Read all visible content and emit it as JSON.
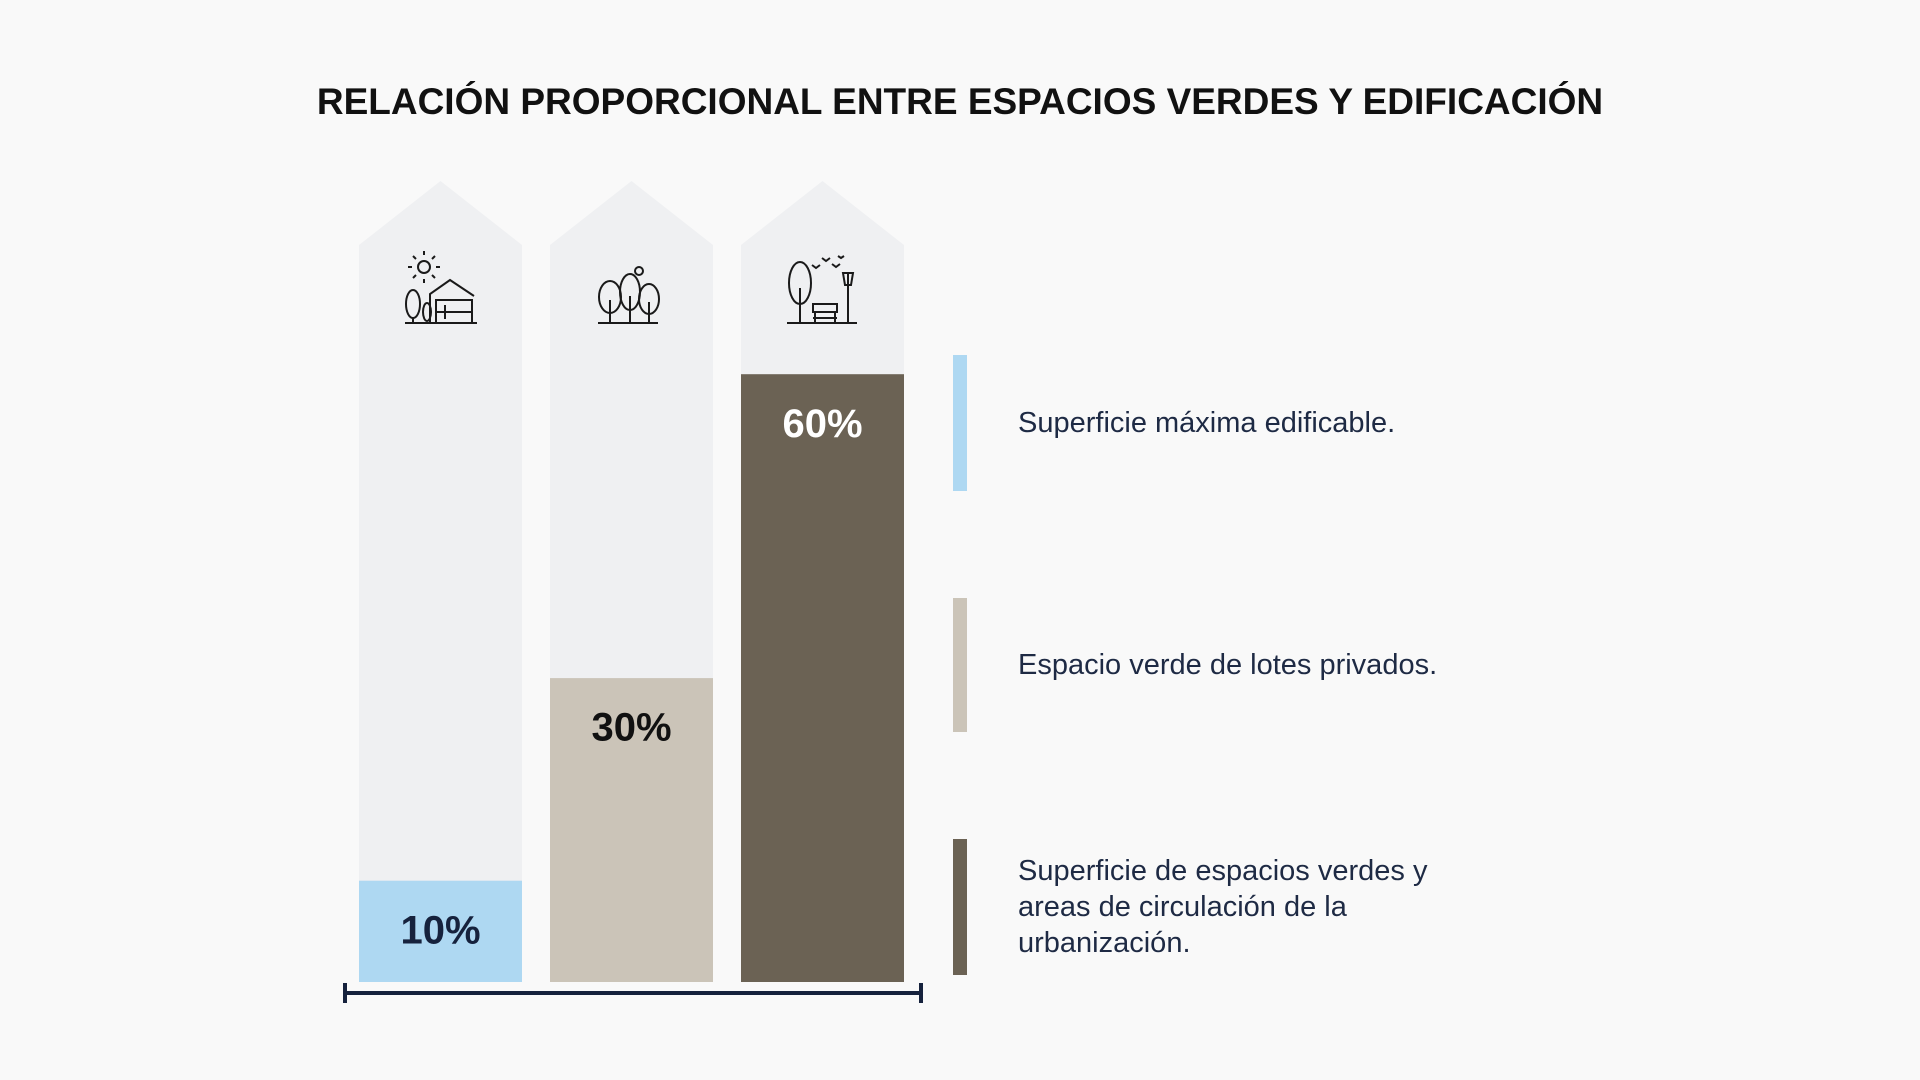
{
  "chart_data": {
    "type": "bar",
    "title": "RELACIÓN PROPORCIONAL ENTRE ESPACIOS VERDES Y EDIFICACIÓN",
    "categories": [
      null,
      null,
      null
    ],
    "values": [
      10,
      30,
      60
    ],
    "value_labels": [
      "10%",
      "30%",
      "60%"
    ],
    "colors": [
      "#aed8f2",
      "#cbc4b8",
      "#6b6254"
    ],
    "label_colors": [
      "#16223d",
      "#111111",
      "#ffffff"
    ],
    "legend": [
      "Superficie máxima edificable.",
      "Espacio verde de lotes privados.",
      "Superficie de espacios verdes y areas de circulación de la urbanización."
    ]
  }
}
